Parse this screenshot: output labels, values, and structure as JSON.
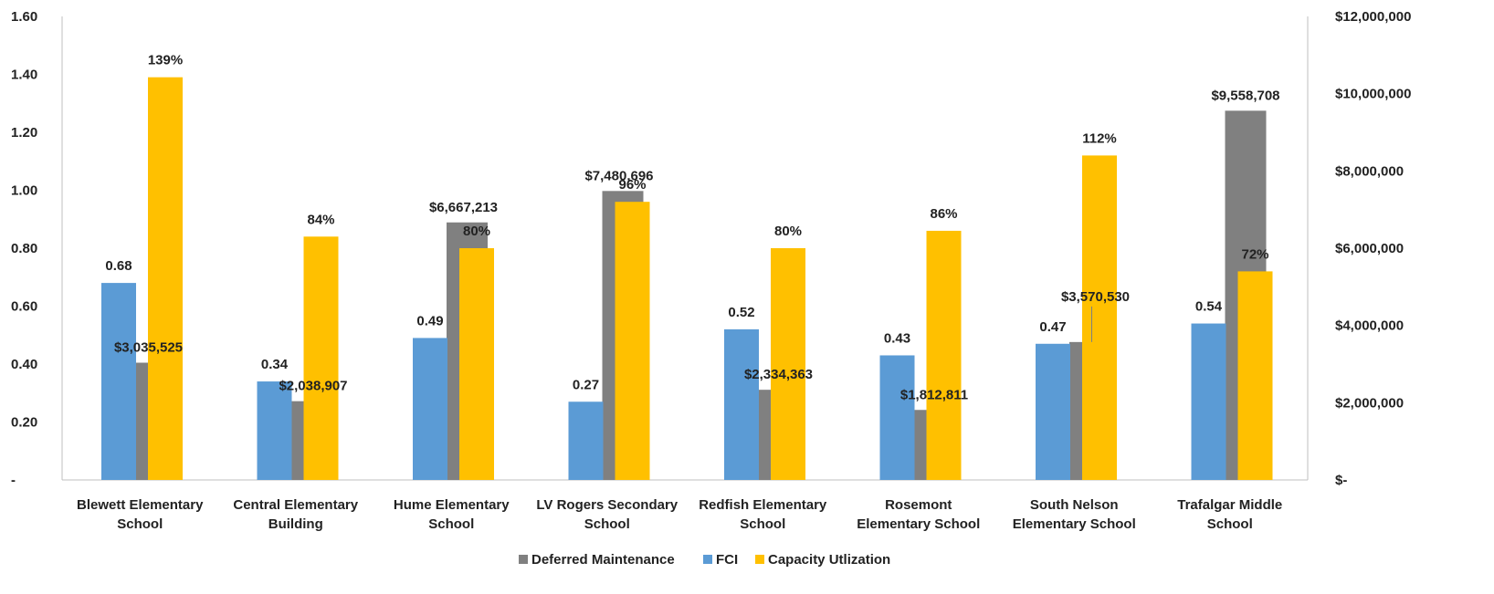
{
  "chart_data": {
    "type": "bar",
    "categories": [
      [
        "Blewett Elementary",
        "School"
      ],
      [
        "Central Elementary",
        "Building"
      ],
      [
        "Hume Elementary",
        "School"
      ],
      [
        "LV Rogers Secondary",
        "School"
      ],
      [
        "Redfish Elementary",
        "School"
      ],
      [
        "Rosemont",
        "Elementary School"
      ],
      [
        "South Nelson",
        "Elementary School"
      ],
      [
        "Trafalgar Middle",
        "School"
      ]
    ],
    "series": [
      {
        "name": "Deferred Maintenance",
        "axis": "right",
        "color": "#808080",
        "values": [
          3035525,
          2038907,
          6667213,
          7480696,
          2334363,
          1812811,
          3570530,
          9558708
        ],
        "labels": [
          "$3,035,525",
          "$2,038,907",
          "$6,667,213",
          "$7,480,696",
          "$2,334,363",
          "$1,812,811",
          "$3,570,530",
          "$9,558,708"
        ]
      },
      {
        "name": "FCI",
        "axis": "left",
        "color": "#5B9BD5",
        "values": [
          0.68,
          0.34,
          0.49,
          0.27,
          0.52,
          0.43,
          0.47,
          0.54
        ],
        "labels": [
          "0.68",
          "0.34",
          "0.49",
          "0.27",
          "0.52",
          "0.43",
          "0.47",
          "0.54"
        ]
      },
      {
        "name": "Capacity Utlization",
        "axis": "left",
        "color": "#FFC000",
        "values": [
          1.39,
          0.84,
          0.8,
          0.96,
          0.8,
          0.86,
          1.12,
          0.72
        ],
        "labels": [
          "139%",
          "84%",
          "80%",
          "96%",
          "80%",
          "86%",
          "112%",
          "72%"
        ]
      }
    ],
    "y_left": {
      "ylim": [
        0,
        1.6
      ],
      "ticks": [
        0,
        0.2,
        0.4,
        0.6,
        0.8,
        1.0,
        1.2,
        1.4,
        1.6
      ],
      "tick_labels": [
        "-",
        "0.20",
        "0.40",
        "0.60",
        "0.80",
        "1.00",
        "1.20",
        "1.40",
        "1.60"
      ]
    },
    "y_right": {
      "ylim": [
        0,
        12000000
      ],
      "ticks": [
        0,
        2000000,
        4000000,
        6000000,
        8000000,
        10000000,
        12000000
      ],
      "tick_labels": [
        "$-",
        "$2,000,000",
        "$4,000,000",
        "$6,000,000",
        "$8,000,000",
        "$10,000,000",
        "$12,000,000"
      ]
    },
    "legend": {
      "position": "bottom",
      "order": [
        "Deferred Maintenance",
        "FCI",
        "Capacity Utlization"
      ]
    },
    "grid": false
  }
}
